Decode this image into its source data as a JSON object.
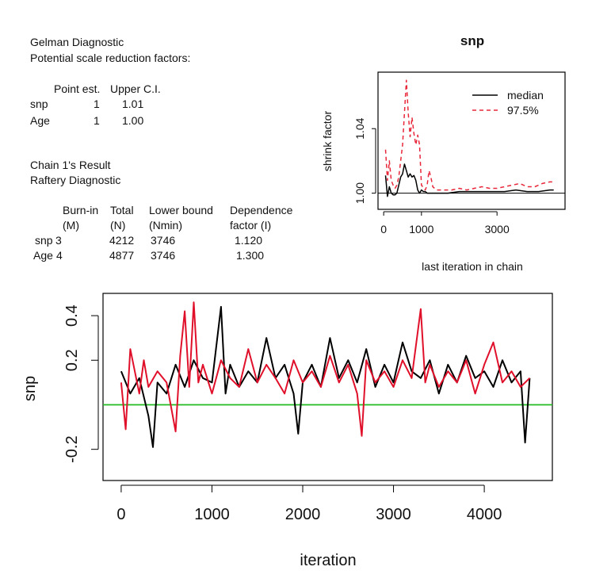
{
  "gelman": {
    "title": "Gelman Diagnostic",
    "subtitle": "Potential scale reduction factors:",
    "headers": [
      "Point est.",
      "Upper C.I."
    ],
    "rows": [
      {
        "name": "snp",
        "point": "1",
        "upper": "1.01"
      },
      {
        "name": "Age",
        "point": "1",
        "upper": "1.00"
      }
    ]
  },
  "raftery": {
    "chain_title": "Chain 1's Result",
    "title": "Raftery Diagnostic",
    "headers": [
      {
        "line1": "Burn-in",
        "line2": "(M)"
      },
      {
        "line1": "Total",
        "line2": "(N)"
      },
      {
        "line1": "Lower bound",
        "line2": "(Nmin)"
      },
      {
        "line1": "Dependence",
        "line2": "factor (I)"
      }
    ],
    "rows": [
      {
        "name": "snp",
        "burn": "3",
        "total": "4212",
        "lower": "3746",
        "dep": "1.120"
      },
      {
        "name": "Age",
        "burn": "4",
        "total": "4877",
        "lower": "3746",
        "dep": "1.300"
      }
    ]
  },
  "colors": {
    "median": "#000000",
    "upper": "#e8283a",
    "chain1": "#000000",
    "chain2": "#e0102a",
    "ref": "#22bb22"
  },
  "chart_data": [
    {
      "type": "line",
      "title": "snp",
      "xlabel": "last iteration in chain",
      "ylabel": "shrink factor",
      "xlim": [
        -150,
        4800
      ],
      "ylim": [
        0.99,
        1.075
      ],
      "xticks": [
        "0",
        "1000",
        "3000"
      ],
      "xtick_values": [
        0,
        1000,
        3000
      ],
      "yticks": [
        "1.00",
        "1.04"
      ],
      "ytick_values": [
        1.0,
        1.04
      ],
      "reference_line": 1.0,
      "legend": {
        "position": "top-right",
        "entries": [
          "median",
          "97.5%"
        ]
      },
      "series": [
        {
          "name": "median",
          "style": "solid",
          "x": [
            50,
            100,
            150,
            200,
            250,
            300,
            350,
            400,
            450,
            500,
            550,
            600,
            650,
            700,
            750,
            800,
            850,
            900,
            950,
            1000,
            1050,
            1100,
            1150,
            1200,
            1300,
            1500,
            1700,
            2000,
            2300,
            2600,
            2900,
            3200,
            3500,
            3800,
            4100,
            4400,
            4500
          ],
          "y": [
            1.011,
            0.998,
            1.004,
            1.0,
            0.999,
            0.999,
            1.0,
            1.005,
            1.01,
            1.012,
            1.018,
            1.014,
            1.01,
            1.012,
            1.01,
            1.011,
            1.008,
            1.002,
            1.0,
            1.002,
            1.001,
            1.001,
            1.0,
            1.0,
            1.0,
            1.0,
            1.0,
            1.001,
            1.001,
            1.001,
            1.001,
            1.001,
            1.002,
            1.001,
            1.001,
            1.002,
            1.002
          ]
        },
        {
          "name": "97.5%",
          "style": "dashed",
          "x": [
            50,
            100,
            150,
            200,
            250,
            300,
            350,
            400,
            450,
            500,
            550,
            600,
            650,
            700,
            750,
            800,
            850,
            900,
            950,
            1000,
            1100,
            1150,
            1200,
            1250,
            1300,
            1400,
            1600,
            1800,
            2000,
            2200,
            2400,
            2600,
            2800,
            3000,
            3200,
            3400,
            3600,
            3800,
            4000,
            4200,
            4400,
            4500
          ],
          "y": [
            1.027,
            1.008,
            1.02,
            1.008,
            1.005,
            1.003,
            1.005,
            1.01,
            1.02,
            1.03,
            1.05,
            1.07,
            1.05,
            1.035,
            1.047,
            1.037,
            1.03,
            1.036,
            1.03,
            1.005,
            1.002,
            1.005,
            1.014,
            1.01,
            1.004,
            1.002,
            1.002,
            1.002,
            1.003,
            1.002,
            1.003,
            1.004,
            1.003,
            1.003,
            1.004,
            1.005,
            1.006,
            1.004,
            1.004,
            1.006,
            1.007,
            1.007
          ]
        }
      ]
    },
    {
      "type": "line",
      "title": "",
      "xlabel": "iteration",
      "ylabel": "snp",
      "xlim": [
        -200,
        4750
      ],
      "ylim": [
        -0.34,
        0.5
      ],
      "xticks": [
        "0",
        "1000",
        "2000",
        "3000",
        "4000"
      ],
      "xtick_values": [
        0,
        1000,
        2000,
        3000,
        4000
      ],
      "yticks": [
        "-0.2",
        "0.2",
        "0.4"
      ],
      "ytick_values": [
        -0.2,
        0.2,
        0.4
      ],
      "reference_line": 0.0,
      "series": [
        {
          "style": "solid",
          "color_key": "chain1",
          "x": [
            0,
            100,
            200,
            300,
            350,
            400,
            500,
            600,
            700,
            800,
            900,
            1000,
            1100,
            1150,
            1200,
            1300,
            1400,
            1500,
            1600,
            1700,
            1800,
            1900,
            1950,
            2000,
            2100,
            2200,
            2300,
            2400,
            2500,
            2600,
            2700,
            2800,
            2900,
            3000,
            3100,
            3200,
            3300,
            3400,
            3500,
            3600,
            3700,
            3800,
            3900,
            4000,
            4100,
            4200,
            4300,
            4400,
            4450,
            4500
          ],
          "y": [
            0.15,
            0.05,
            0.12,
            -0.05,
            -0.19,
            0.1,
            0.05,
            0.18,
            0.08,
            0.2,
            0.12,
            0.1,
            0.44,
            0.05,
            0.18,
            0.08,
            0.15,
            0.1,
            0.3,
            0.12,
            0.18,
            0.05,
            -0.13,
            0.1,
            0.18,
            0.08,
            0.3,
            0.12,
            0.2,
            0.1,
            0.25,
            0.08,
            0.18,
            0.1,
            0.28,
            0.15,
            0.12,
            0.2,
            0.05,
            0.18,
            0.1,
            0.22,
            0.12,
            0.15,
            0.08,
            0.2,
            0.1,
            0.15,
            -0.17,
            0.12
          ]
        },
        {
          "style": "solid",
          "color_key": "chain2",
          "x": [
            0,
            50,
            100,
            200,
            250,
            300,
            400,
            500,
            600,
            650,
            700,
            750,
            800,
            850,
            900,
            1000,
            1100,
            1200,
            1300,
            1400,
            1500,
            1600,
            1700,
            1800,
            1900,
            2000,
            2100,
            2200,
            2300,
            2400,
            2500,
            2600,
            2650,
            2700,
            2800,
            2900,
            3000,
            3100,
            3200,
            3300,
            3350,
            3400,
            3500,
            3600,
            3700,
            3800,
            3900,
            4000,
            4100,
            4200,
            4300,
            4400,
            4500
          ],
          "y": [
            0.1,
            -0.11,
            0.25,
            0.05,
            0.2,
            0.08,
            0.15,
            0.1,
            -0.12,
            0.22,
            0.42,
            0.08,
            0.46,
            0.1,
            0.18,
            0.05,
            0.2,
            0.12,
            0.08,
            0.25,
            0.1,
            0.18,
            0.12,
            0.05,
            0.2,
            0.1,
            0.15,
            0.08,
            0.22,
            0.1,
            0.18,
            0.05,
            -0.14,
            0.2,
            0.1,
            0.15,
            0.08,
            0.2,
            0.12,
            0.43,
            0.1,
            0.18,
            0.08,
            0.15,
            0.1,
            0.2,
            0.05,
            0.18,
            0.28,
            0.1,
            0.15,
            0.08,
            0.12
          ]
        }
      ]
    }
  ]
}
